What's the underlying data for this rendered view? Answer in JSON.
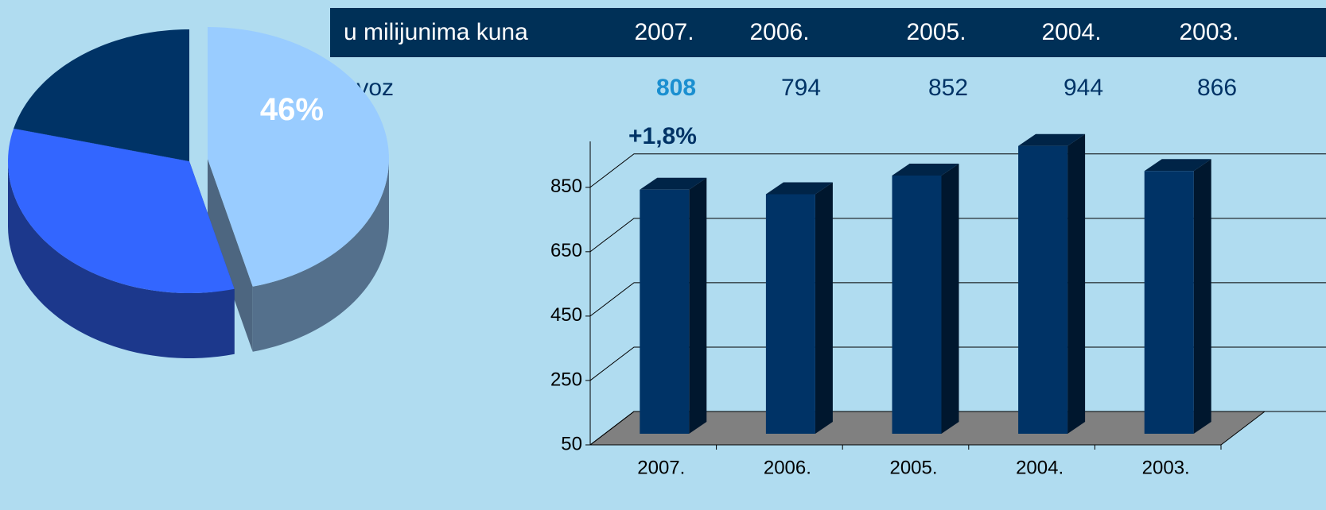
{
  "table": {
    "header": [
      "u milijunima kuna",
      "2007.",
      "2006.",
      "2005.",
      "2004.",
      "2003."
    ],
    "rows": [
      [
        "Izvoz",
        "808",
        "794",
        "852",
        "944",
        "866"
      ]
    ]
  },
  "chart_data": [
    {
      "type": "pie",
      "values": [
        46,
        33,
        21
      ],
      "value_labels": [
        "46%",
        null,
        null
      ],
      "colors": [
        "#99ccff",
        "#3366ff",
        "#003366"
      ]
    },
    {
      "type": "bar",
      "annotation": "+1,8%",
      "categories": [
        "2007.",
        "2006.",
        "2005.",
        "2004.",
        "2003."
      ],
      "values": [
        808,
        794,
        852,
        944,
        866
      ],
      "color": "#003366",
      "ylim": [
        50,
        1000
      ],
      "yticks": [
        50,
        250,
        450,
        650,
        850
      ],
      "grid": true
    }
  ]
}
